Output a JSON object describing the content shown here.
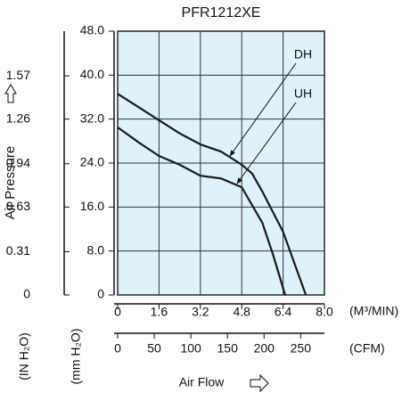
{
  "chart_data": {
    "type": "line",
    "title": "PFR1212XE",
    "xlabel": "Air Flow",
    "x_unit": "(M³/MIN)",
    "x2_unit": "(CFM)",
    "ylabel": "Air Pressure",
    "y_unit": "(mm H₂O)",
    "y2_unit": "(IN H₂O)",
    "xlim": [
      0,
      8
    ],
    "xticks": [
      0,
      1.6,
      3.2,
      4.8,
      6.4,
      {
        "value": 8,
        "label": "8.0"
      }
    ],
    "x2lim": [
      0,
      282.5
    ],
    "x2ticks": [
      0,
      50,
      100,
      150,
      200,
      250
    ],
    "ylim": [
      0,
      48
    ],
    "yticks": [
      0,
      {
        "value": 8,
        "label": "8.0"
      },
      {
        "value": 16,
        "label": "16.0"
      },
      {
        "value": 24,
        "label": "24.0"
      },
      {
        "value": 32,
        "label": "32.0"
      },
      {
        "value": 40,
        "label": "40.0"
      },
      {
        "value": 48,
        "label": "48.0"
      }
    ],
    "y2lim": [
      0,
      1.89
    ],
    "y2ticks": [
      0,
      0.31,
      0.63,
      0.94,
      1.26,
      1.57
    ],
    "grid": true,
    "background": "#dff1f9",
    "series": [
      {
        "name": "DH",
        "color": "#1a1a1a",
        "x": [
          0,
          0.8,
          1.6,
          2.4,
          3.2,
          4.0,
          4.8,
          5.2,
          5.6,
          6.4,
          7.28
        ],
        "values": [
          36.6,
          34.2,
          31.8,
          29.4,
          27.4,
          26.1,
          23.7,
          22.1,
          18.8,
          11.5,
          0
        ]
      },
      {
        "name": "UH",
        "color": "#1a1a1a",
        "x": [
          0,
          0.8,
          1.6,
          2.4,
          3.2,
          4.0,
          4.8,
          5.6,
          6.0,
          6.48
        ],
        "values": [
          30.5,
          27.8,
          25.3,
          23.7,
          21.7,
          21.2,
          19.6,
          13.1,
          7.5,
          0
        ]
      }
    ]
  }
}
